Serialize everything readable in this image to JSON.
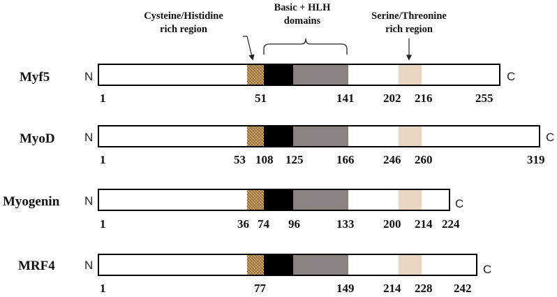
{
  "annotations": {
    "cys_his": [
      "Cysteine/Histidine",
      "rich region"
    ],
    "basic_hlh": [
      "Basic + HLH",
      "domains"
    ],
    "ser_thr": [
      "Serine/Threonine",
      "rich region"
    ]
  },
  "terminus": {
    "n": "N",
    "c": "C"
  },
  "colors": {
    "cys_his_region": "#b98a4e",
    "basic_domain": "#000000",
    "hlh_domain": "#8a8280",
    "ser_thr_region": "#ead7c2"
  },
  "proteins": [
    {
      "name": "Myf5",
      "positions": [
        "1",
        "51",
        "141",
        "202",
        "216",
        "255"
      ]
    },
    {
      "name": "MyoD",
      "positions": [
        "1",
        "53",
        "108",
        "125",
        "166",
        "246",
        "260",
        "319"
      ]
    },
    {
      "name": "Myogenin",
      "positions": [
        "1",
        "36",
        "74",
        "96",
        "133",
        "200",
        "214",
        "224"
      ]
    },
    {
      "name": "MRF4",
      "positions": [
        "1",
        "77",
        "149",
        "214",
        "228",
        "242"
      ]
    }
  ]
}
